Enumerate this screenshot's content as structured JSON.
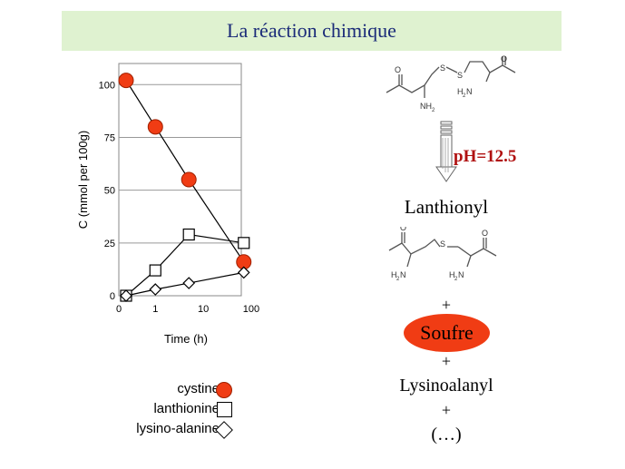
{
  "title": "La réaction chimique",
  "chart_data": {
    "type": "line",
    "xlabel": "Time (h)",
    "ylabel": "C (mmol per 100g)",
    "x_scale": "log",
    "x_tick_labels": [
      "0",
      "1",
      "10",
      "100"
    ],
    "y_ticks": [
      0,
      25,
      50,
      75,
      100
    ],
    "ylim": [
      0,
      110
    ],
    "grid": "horizontal",
    "series": [
      {
        "name": "cystine",
        "marker": "circle",
        "color": "#f03c14",
        "x": [
          0,
          1,
          5,
          70
        ],
        "y": [
          102,
          80,
          55,
          16
        ]
      },
      {
        "name": "lanthionine",
        "marker": "square",
        "color": "#ffffff",
        "x": [
          0,
          1,
          5,
          70
        ],
        "y": [
          0,
          12,
          29,
          25
        ]
      },
      {
        "name": "lysino-alanine",
        "marker": "diamond",
        "color": "#ffffff",
        "x": [
          0,
          1,
          5,
          70
        ],
        "y": [
          0,
          3,
          6,
          11
        ]
      }
    ]
  },
  "legend": [
    {
      "label": "cystine"
    },
    {
      "label": "lanthionine"
    },
    {
      "label": "lysino-alanine"
    }
  ],
  "reaction": {
    "ph": "pH=12.5",
    "product1": "Lanthionyl",
    "plus1": "+",
    "product2": "Soufre",
    "plus2": "+",
    "product3": "Lysinoalanyl",
    "plus3": "+",
    "product4": "(…)"
  },
  "structure_labels": {
    "top_s1": "S",
    "top_s2": "S",
    "top_o1": "O",
    "top_o2": "O",
    "top_nh2_left": "NH",
    "top_nh2_right": "H",
    "mid_s": "S",
    "mid_o1": "O",
    "mid_o2": "O",
    "mid_nh_left": "H",
    "mid_nh_right": "H"
  },
  "colors": {
    "accent_red": "#f03c14",
    "title_band": "#dff2d0",
    "title_text": "#1a2a78",
    "ph_text": "#b01010"
  }
}
